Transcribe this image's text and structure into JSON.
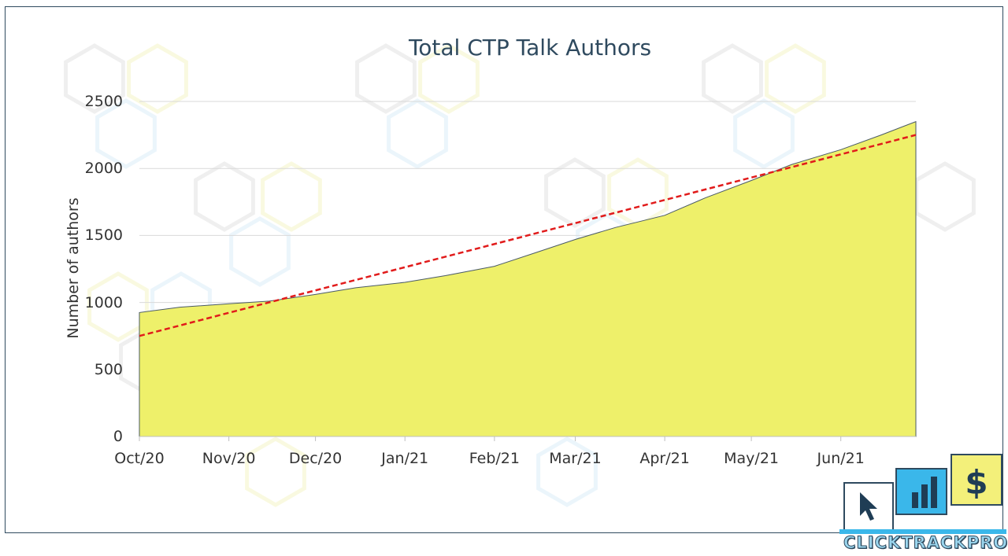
{
  "chart_data": {
    "type": "area",
    "title": "Total CTP Talk Authors",
    "xlabel": "",
    "ylabel": "Number of authors",
    "ylim": [
      0,
      2500
    ],
    "yticks": [
      0,
      500,
      1000,
      1500,
      2000,
      2500
    ],
    "xlim": [
      "2020-10-01",
      "2021-06-27"
    ],
    "xtick_labels": [
      "Oct/20",
      "Nov/20",
      "Dec/20",
      "Jan/21",
      "Feb/21",
      "Mar/21",
      "Apr/21",
      "May/21",
      "Jun/21"
    ],
    "xtick_dates": [
      "2020-10-01",
      "2020-11-01",
      "2020-12-01",
      "2021-01-01",
      "2021-02-01",
      "2021-03-01",
      "2021-04-01",
      "2021-05-01",
      "2021-06-01"
    ],
    "grid": "horizontal",
    "legend": "none",
    "series": [
      {
        "type": "area",
        "color": "#eef06a",
        "x": [
          "2020-10-01",
          "2020-10-15",
          "2020-11-01",
          "2020-11-15",
          "2020-12-01",
          "2020-12-15",
          "2021-01-01",
          "2021-01-15",
          "2021-02-01",
          "2021-02-15",
          "2021-03-01",
          "2021-03-15",
          "2021-04-01",
          "2021-04-15",
          "2021-05-01",
          "2021-05-15",
          "2021-06-01",
          "2021-06-15",
          "2021-06-27"
        ],
        "values": [
          925,
          965,
          990,
          1010,
          1060,
          1110,
          1150,
          1200,
          1270,
          1370,
          1470,
          1560,
          1650,
          1780,
          1910,
          2030,
          2140,
          2250,
          2350
        ]
      },
      {
        "type": "trendline",
        "style": "dashed",
        "color": "#e11b1b",
        "x": [
          "2020-10-01",
          "2021-06-27"
        ],
        "values": [
          750,
          2250
        ]
      }
    ]
  },
  "logo": {
    "text": "CLICKTRACKPROFIT",
    "colors": {
      "dark": "#2f4a5f",
      "blue": "#3ab7ea",
      "yellow": "#f3f07a"
    },
    "icons": [
      "cursor-icon",
      "bar-chart-icon",
      "dollar-icon"
    ]
  }
}
